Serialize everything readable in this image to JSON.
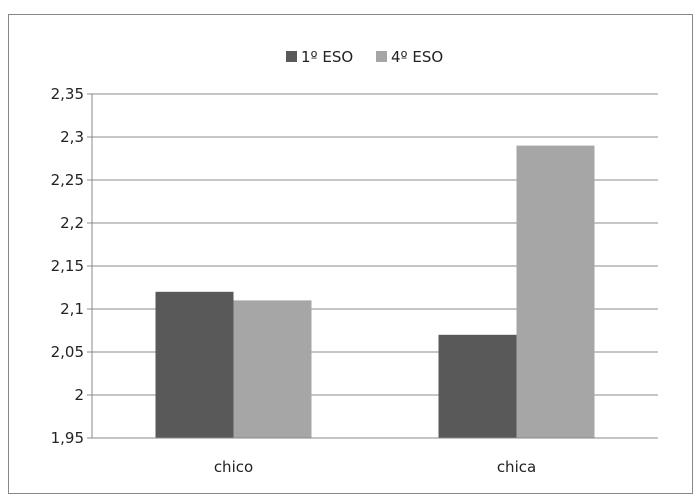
{
  "chart_data": {
    "type": "bar",
    "categories": [
      "chico",
      "chica"
    ],
    "series": [
      {
        "name": "1º ESO",
        "values": [
          2.12,
          2.07
        ],
        "color": "#595959"
      },
      {
        "name": "4º ESO",
        "values": [
          2.11,
          2.29
        ],
        "color": "#a6a6a6"
      }
    ],
    "ylim": [
      1.95,
      2.35
    ],
    "yticks": [
      "1,95",
      "2",
      "2,05",
      "2,1",
      "2,15",
      "2,2",
      "2,25",
      "2,3",
      "2,35"
    ],
    "ytick_values": [
      1.95,
      2.0,
      2.05,
      2.1,
      2.15,
      2.2,
      2.25,
      2.3,
      2.35
    ],
    "grid": true,
    "legend": "top-center"
  }
}
